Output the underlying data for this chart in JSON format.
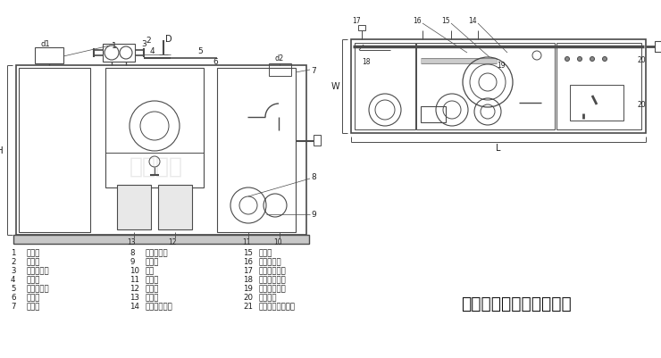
{
  "title": "全自动油水分离器示意图",
  "bg_color": "#ffffff",
  "line_color": "#4a4a4a",
  "legend_items_col1": [
    [
      "1",
      "进水口"
    ],
    [
      "2",
      "除渣器"
    ],
    [
      "3",
      "泄压排气口"
    ],
    [
      "4",
      "排油阀"
    ],
    [
      "5",
      "除渣感应器"
    ],
    [
      "6",
      "出水口"
    ],
    [
      "7",
      "溢流口"
    ]
  ],
  "legend_items_col2": [
    [
      "8",
      "污水提升器"
    ],
    [
      "9",
      "排污阀"
    ],
    [
      "10",
      "底座"
    ],
    [
      "11",
      "温度计"
    ],
    [
      "12",
      "集油桶"
    ],
    [
      "13",
      "集渣桶"
    ],
    [
      "14",
      "二级仓排泥阀"
    ]
  ],
  "legend_items_col3": [
    [
      "15",
      "加热棒"
    ],
    [
      "16",
      "温度传感器"
    ],
    [
      "17",
      "一级仓排泥阀"
    ],
    [
      "18",
      "除渣器检修门"
    ],
    [
      "19",
      "隔油器检修盖"
    ],
    [
      "20",
      "线缆接口"
    ],
    [
      "21",
      "污水提升器检修门"
    ]
  ],
  "watermark": "中鑫佳水"
}
